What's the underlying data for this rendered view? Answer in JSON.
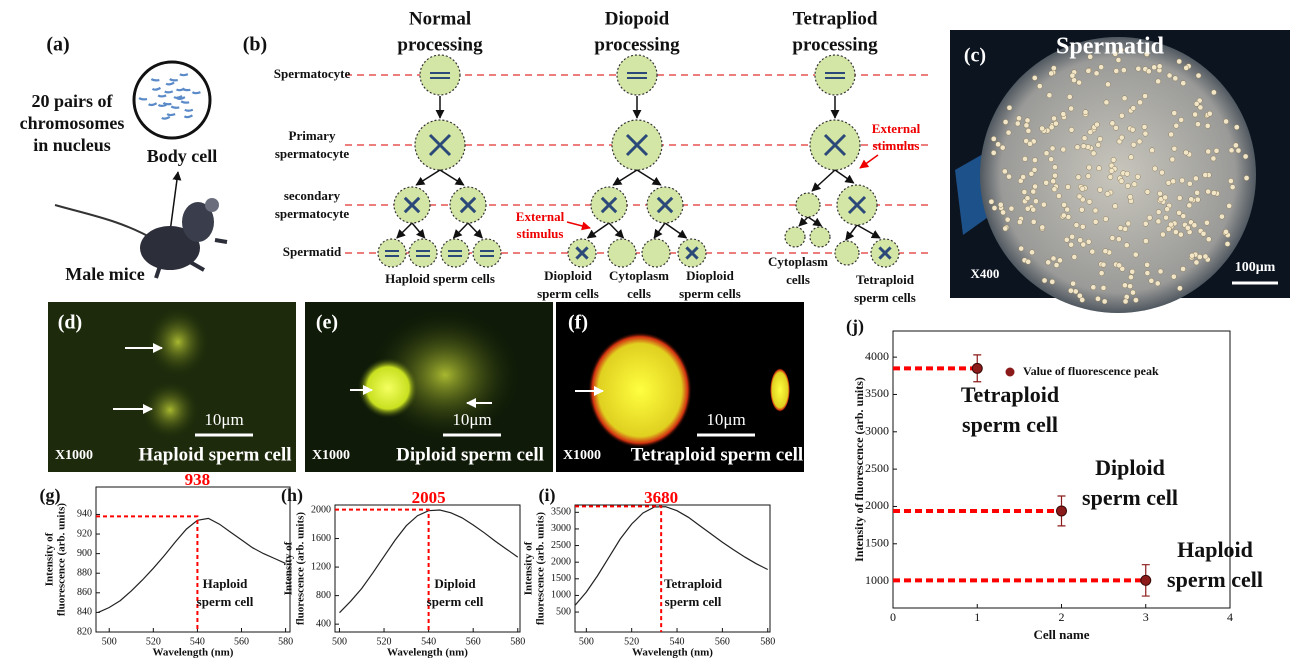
{
  "panel_a": {
    "label": "(a)",
    "chromosome_text": [
      "20 pairs of",
      "chromosomes",
      "in nucleus"
    ],
    "body_cell": "Body cell",
    "mouse": "Male mice"
  },
  "panel_b": {
    "label": "(b)",
    "columns": [
      [
        "Normal",
        "processing"
      ],
      [
        "Diopoid",
        "processing"
      ],
      [
        "Tetrapliod",
        "processing"
      ]
    ],
    "rows": [
      [
        "Spermatocyte"
      ],
      [
        "Primary",
        "spermatocyte"
      ],
      [
        "secondary",
        "spermatocyte"
      ],
      [
        "Spermatid"
      ]
    ],
    "outputs": [
      [
        "Haploid sperm cells"
      ],
      [
        "Dioploid",
        "sperm cells"
      ],
      [
        "Cytoplasm",
        "cells"
      ],
      [
        "Dioploid",
        "sperm cells"
      ],
      [
        "Cytoplasm",
        "cells"
      ],
      [
        "Tetraploid",
        "sperm cells"
      ]
    ],
    "stimulus": [
      [
        "External",
        "stimulus"
      ],
      [
        "External",
        "stimulus"
      ]
    ]
  },
  "panel_c": {
    "label": "(c)",
    "title": "Spermatid",
    "magnification": "X400",
    "scale": "100μm"
  },
  "micrographs": [
    {
      "label": "(d)",
      "magnification": "X1000",
      "caption": "Haploid sperm cell",
      "scale": "10μm"
    },
    {
      "label": "(e)",
      "magnification": "X1000",
      "caption": "Diploid sperm cell",
      "scale": "10μm"
    },
    {
      "label": "(f)",
      "magnification": "X1000",
      "caption": "Tetraploid sperm cell",
      "scale": "10μm"
    }
  ],
  "chart_data": [
    {
      "type": "line",
      "label": "(g)",
      "color": "#222222",
      "peak_color": "#ff0000",
      "x": [
        495,
        500,
        505,
        510,
        515,
        520,
        525,
        530,
        535,
        540,
        545,
        550,
        555,
        560,
        565,
        570,
        575,
        580
      ],
      "values": [
        840,
        845,
        852,
        862,
        873,
        885,
        898,
        912,
        925,
        934,
        936,
        930,
        922,
        914,
        906,
        900,
        895,
        890
      ],
      "xlim": [
        494,
        582
      ],
      "ylim": [
        820,
        968
      ],
      "xticks": [
        500,
        520,
        540,
        560,
        580
      ],
      "yticks": [
        820,
        840,
        860,
        880,
        900,
        920,
        940
      ],
      "xlabel": "Wavelength (nm)",
      "ylabel": [
        "Intensity of",
        "fluorescence (arb. units)"
      ],
      "annotation": [
        "Haploid",
        "sperm cell"
      ],
      "peak": {
        "x": 540,
        "value": 938
      }
    },
    {
      "type": "line",
      "label": "(h)",
      "color": "#222222",
      "peak_color": "#ff0000",
      "x": [
        500,
        505,
        510,
        515,
        520,
        525,
        530,
        535,
        540,
        545,
        550,
        555,
        560,
        565,
        570,
        575,
        580
      ],
      "values": [
        560,
        720,
        900,
        1120,
        1350,
        1580,
        1780,
        1920,
        1990,
        2000,
        1960,
        1890,
        1790,
        1680,
        1560,
        1450,
        1340
      ],
      "xlim": [
        498,
        581
      ],
      "ylim": [
        290,
        2070
      ],
      "xticks": [
        500,
        520,
        540,
        560,
        580
      ],
      "yticks": [
        400,
        800,
        1200,
        1600,
        2000
      ],
      "xlabel": "Wavelength (nm)",
      "ylabel": [
        "Intensity of",
        "fluorescence (arb. units)"
      ],
      "annotation": [
        "Diploid",
        "sperm cell"
      ],
      "peak": {
        "x": 540,
        "value": 2005
      }
    },
    {
      "type": "line",
      "label": "(i)",
      "color": "#222222",
      "peak_color": "#ff0000",
      "x": [
        495,
        500,
        505,
        510,
        515,
        520,
        525,
        530,
        535,
        540,
        545,
        550,
        555,
        560,
        565,
        570,
        575,
        580
      ],
      "values": [
        700,
        1100,
        1600,
        2150,
        2700,
        3150,
        3480,
        3660,
        3670,
        3550,
        3350,
        3100,
        2850,
        2600,
        2370,
        2150,
        1950,
        1780
      ],
      "xlim": [
        495,
        581
      ],
      "ylim": [
        -100,
        3720
      ],
      "xticks": [
        500,
        520,
        540,
        560,
        580
      ],
      "yticks": [
        500,
        1000,
        1500,
        2000,
        2500,
        3000,
        3500
      ],
      "xlabel": "Wavelength (nm)",
      "ylabel": [
        "Intensity of",
        "fluorescence (arb. units)"
      ],
      "annotation": [
        "Tetraploid",
        "sperm cell"
      ],
      "peak": {
        "x": 533,
        "value": 3680
      }
    },
    {
      "type": "scatter",
      "label": "(j)",
      "line_color": "#ff0000",
      "x": [
        1,
        2,
        3
      ],
      "series": [
        {
          "name": "Value of fluorescence peak",
          "color": "#8b1a1a",
          "values": [
            3850,
            1940,
            1010
          ],
          "errors": [
            180,
            200,
            210
          ]
        }
      ],
      "xlim": [
        0,
        4
      ],
      "ylim": [
        640,
        4350
      ],
      "xticks": [
        0,
        1,
        2,
        3,
        4
      ],
      "yticks": [
        1000,
        1500,
        2000,
        2500,
        3000,
        3500,
        4000
      ],
      "xlabel": "Cell name",
      "ylabel": "Intensity of fluorescence (arb. units)",
      "annotations": [
        [
          "Tetraploid",
          "sperm cell"
        ],
        [
          "Diploid",
          "sperm cell"
        ],
        [
          "Haploid",
          "sperm cell"
        ]
      ]
    }
  ]
}
